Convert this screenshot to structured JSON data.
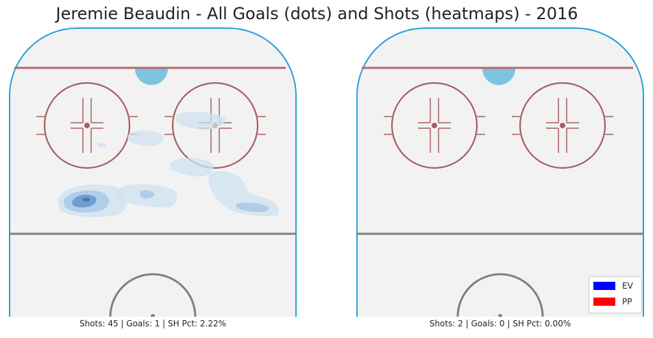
{
  "title": "Jeremie Beaudin - All Goals (dots) and Shots (heatmaps) - 2016",
  "chart_data": [
    {
      "type": "heatmap",
      "panel": "EV",
      "caption": "Shots: 45 | Goals: 1 | SH Pct: 2.22%",
      "shots": 45,
      "goals": 1,
      "sh_pct": "2.22%"
    },
    {
      "type": "heatmap",
      "panel": "PP",
      "caption": "Shots: 2 | Goals: 0 | SH Pct: 0.00%",
      "shots": 2,
      "goals": 0,
      "sh_pct": "0.00%"
    }
  ],
  "legend": {
    "placement": "lower-right",
    "items": [
      {
        "label": "EV",
        "color": "#0000ff"
      },
      {
        "label": "PP",
        "color": "#ff0000"
      }
    ]
  },
  "colors": {
    "ice": "#f2f2f2",
    "boards": "#2a9fd6",
    "goal_line": "#b36a6e",
    "faceoff": "#a65e62",
    "crease": "#7ec4e2",
    "blue_line": "#7f7f7f",
    "heat_light": "#cfe1f1",
    "heat_mid": "#a3c6e6",
    "heat_dark": "#5b8fc7"
  }
}
